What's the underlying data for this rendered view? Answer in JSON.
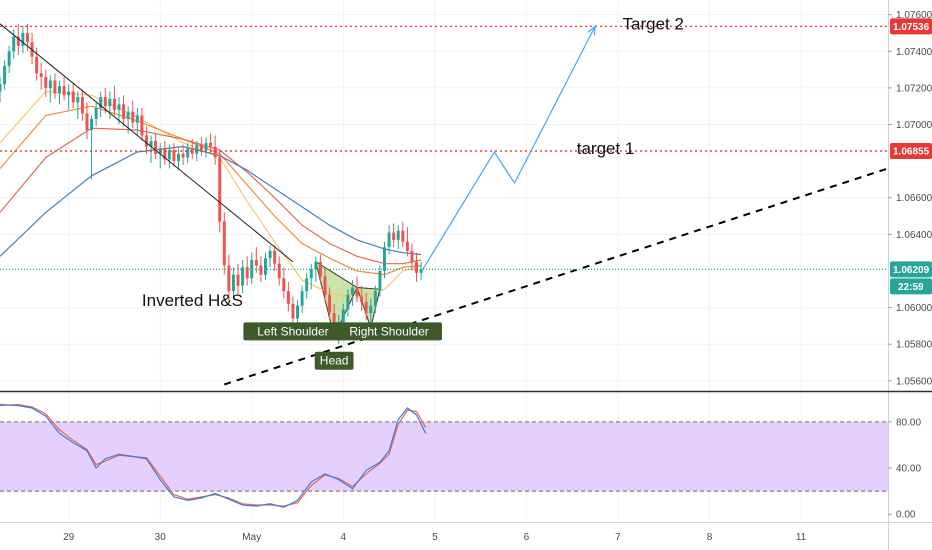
{
  "chart_data": {
    "type": "candlestick",
    "price_axis": {
      "ticks": [
        "1.07600",
        "1.07400",
        "1.07200",
        "1.07000",
        "1.06600",
        "1.06400",
        "1.06000",
        "1.05800",
        "1.05600"
      ],
      "tick_values": [
        1.076,
        1.074,
        1.072,
        1.07,
        1.066,
        1.064,
        1.06,
        1.058,
        1.056
      ],
      "range": [
        1.0555,
        1.0768
      ]
    },
    "time_axis": {
      "labels": [
        "29",
        "30",
        "May",
        "4",
        "5",
        "6",
        "7",
        "8",
        "11"
      ],
      "label_times": [
        0.75,
        1.75,
        2.75,
        3.75,
        4.75,
        5.75,
        6.75,
        7.75,
        8.75
      ],
      "range": [
        0.0,
        9.7
      ]
    },
    "levels": [
      {
        "name": "target-2-level",
        "value": 1.07536,
        "label": "1.07536",
        "color": "#e53935"
      },
      {
        "name": "target-1-level",
        "value": 1.06855,
        "label": "1.06855",
        "color": "#e53935"
      },
      {
        "name": "current-price",
        "value": 1.06209,
        "label": "1.06209",
        "color": "#26a69a"
      }
    ],
    "countdown": "22:59",
    "candles": [
      [
        0.0,
        1.0718,
        1.0726,
        1.0712,
        1.0722
      ],
      [
        0.05,
        1.0722,
        1.0735,
        1.0719,
        1.0732
      ],
      [
        0.1,
        1.0732,
        1.0743,
        1.0728,
        1.074
      ],
      [
        0.15,
        1.074,
        1.0752,
        1.0736,
        1.0748
      ],
      [
        0.2,
        1.0748,
        1.0755,
        1.0738,
        1.0743
      ],
      [
        0.25,
        1.0743,
        1.0754,
        1.0739,
        1.075
      ],
      [
        0.3,
        1.075,
        1.0755,
        1.074,
        1.0745
      ],
      [
        0.35,
        1.0745,
        1.075,
        1.0733,
        1.0737
      ],
      [
        0.4,
        1.0737,
        1.0742,
        1.0724,
        1.0728
      ],
      [
        0.45,
        1.0728,
        1.0734,
        1.0719,
        1.0726
      ],
      [
        0.5,
        1.0726,
        1.073,
        1.0715,
        1.072
      ],
      [
        0.55,
        1.072,
        1.0727,
        1.0712,
        1.0724
      ],
      [
        0.6,
        1.0724,
        1.0728,
        1.0714,
        1.0717
      ],
      [
        0.65,
        1.0717,
        1.0724,
        1.0711,
        1.0721
      ],
      [
        0.7,
        1.0721,
        1.0726,
        1.0713,
        1.0716
      ],
      [
        0.75,
        1.0716,
        1.0722,
        1.0708,
        1.0718
      ],
      [
        0.8,
        1.0718,
        1.0723,
        1.0709,
        1.0712
      ],
      [
        0.85,
        1.0712,
        1.0718,
        1.0703,
        1.0715
      ],
      [
        0.9,
        1.0715,
        1.0719,
        1.0702,
        1.0706
      ],
      [
        0.95,
        1.0706,
        1.0712,
        1.0692,
        1.0697
      ],
      [
        1.0,
        1.0697,
        1.0705,
        1.067,
        1.0703
      ],
      [
        1.05,
        1.0703,
        1.0712,
        1.0699,
        1.0709
      ],
      [
        1.1,
        1.0709,
        1.0718,
        1.0704,
        1.0715
      ],
      [
        1.15,
        1.0715,
        1.072,
        1.0706,
        1.071
      ],
      [
        1.2,
        1.071,
        1.0718,
        1.0703,
        1.0714
      ],
      [
        1.25,
        1.0714,
        1.0721,
        1.0705,
        1.0708
      ],
      [
        1.3,
        1.0708,
        1.0715,
        1.07,
        1.0711
      ],
      [
        1.35,
        1.0711,
        1.0716,
        1.0699,
        1.0703
      ],
      [
        1.4,
        1.0703,
        1.071,
        1.0695,
        1.0707
      ],
      [
        1.45,
        1.0707,
        1.0713,
        1.0698,
        1.0701
      ],
      [
        1.5,
        1.0701,
        1.0709,
        1.0694,
        1.0705
      ],
      [
        1.55,
        1.0705,
        1.0709,
        1.0691,
        1.0694
      ],
      [
        1.6,
        1.0694,
        1.0699,
        1.0684,
        1.0688
      ],
      [
        1.65,
        1.0688,
        1.0694,
        1.0679,
        1.0691
      ],
      [
        1.7,
        1.0691,
        1.0695,
        1.0681,
        1.0684
      ],
      [
        1.75,
        1.0684,
        1.069,
        1.0676,
        1.0687
      ],
      [
        1.8,
        1.0687,
        1.0691,
        1.0678,
        1.0681
      ],
      [
        1.85,
        1.0681,
        1.0689,
        1.0676,
        1.0686
      ],
      [
        1.9,
        1.0686,
        1.069,
        1.0677,
        1.068
      ],
      [
        1.95,
        1.068,
        1.0687,
        1.0675,
        1.0684
      ],
      [
        2.0,
        1.0684,
        1.0689,
        1.0678,
        1.0682
      ],
      [
        2.05,
        1.0682,
        1.069,
        1.0679,
        1.0687
      ],
      [
        2.1,
        1.0687,
        1.0692,
        1.0681,
        1.0684
      ],
      [
        2.15,
        1.0684,
        1.0691,
        1.068,
        1.0689
      ],
      [
        2.2,
        1.0689,
        1.0693,
        1.0683,
        1.0686
      ],
      [
        2.25,
        1.0686,
        1.0693,
        1.0682,
        1.069
      ],
      [
        2.3,
        1.069,
        1.0695,
        1.0684,
        1.0688
      ],
      [
        2.35,
        1.0688,
        1.0694,
        1.0678,
        1.0682
      ],
      [
        2.4,
        1.0682,
        1.0686,
        1.0641,
        1.0647
      ],
      [
        2.45,
        1.0647,
        1.0652,
        1.0618,
        1.0623
      ],
      [
        2.5,
        1.0623,
        1.0629,
        1.0603,
        1.0609
      ],
      [
        2.55,
        1.0609,
        1.0622,
        1.0605,
        1.0618
      ],
      [
        2.6,
        1.0618,
        1.0624,
        1.0607,
        1.0612
      ],
      [
        2.65,
        1.0612,
        1.0626,
        1.0608,
        1.0622
      ],
      [
        2.7,
        1.0622,
        1.0628,
        1.0612,
        1.0616
      ],
      [
        2.75,
        1.0616,
        1.063,
        1.0613,
        1.0626
      ],
      [
        2.8,
        1.0626,
        1.0633,
        1.0619,
        1.0623
      ],
      [
        2.85,
        1.0623,
        1.0628,
        1.0614,
        1.0618
      ],
      [
        2.9,
        1.0618,
        1.063,
        1.0615,
        1.0627
      ],
      [
        2.95,
        1.0627,
        1.0634,
        1.0622,
        1.0631
      ],
      [
        3.0,
        1.0631,
        1.0634,
        1.062,
        1.0624
      ],
      [
        3.05,
        1.0624,
        1.0628,
        1.0612,
        1.0616
      ],
      [
        3.1,
        1.0616,
        1.0622,
        1.0605,
        1.0609
      ],
      [
        3.15,
        1.0609,
        1.0614,
        1.0598,
        1.0602
      ],
      [
        3.2,
        1.0602,
        1.0606,
        1.059,
        1.0594
      ],
      [
        3.25,
        1.0594,
        1.0604,
        1.0589,
        1.0601
      ],
      [
        3.3,
        1.0601,
        1.0612,
        1.0597,
        1.0609
      ],
      [
        3.35,
        1.0609,
        1.0619,
        1.0605,
        1.0616
      ],
      [
        3.4,
        1.0616,
        1.0624,
        1.061,
        1.0621
      ],
      [
        3.45,
        1.0621,
        1.0628,
        1.0614,
        1.0625
      ],
      [
        3.5,
        1.0625,
        1.0629,
        1.0613,
        1.0617
      ],
      [
        3.55,
        1.0617,
        1.0621,
        1.0603,
        1.0607
      ],
      [
        3.6,
        1.0607,
        1.0611,
        1.0593,
        1.0597
      ],
      [
        3.65,
        1.0597,
        1.0602,
        1.0584,
        1.0588
      ],
      [
        3.7,
        1.0588,
        1.0596,
        1.058,
        1.0592
      ],
      [
        3.75,
        1.0592,
        1.0602,
        1.0588,
        1.0599
      ],
      [
        3.8,
        1.0599,
        1.061,
        1.0595,
        1.0607
      ],
      [
        3.85,
        1.0607,
        1.0615,
        1.0601,
        1.0611
      ],
      [
        3.9,
        1.0611,
        1.0617,
        1.0603,
        1.0606
      ],
      [
        3.95,
        1.0606,
        1.0612,
        1.0598,
        1.0603
      ],
      [
        4.0,
        1.0603,
        1.0608,
        1.0593,
        1.0597
      ],
      [
        4.05,
        1.0597,
        1.0605,
        1.0589,
        1.0601
      ],
      [
        4.1,
        1.0601,
        1.0612,
        1.0597,
        1.0609
      ],
      [
        4.15,
        1.0609,
        1.0623,
        1.0606,
        1.062
      ],
      [
        4.2,
        1.062,
        1.0636,
        1.0616,
        1.0633
      ],
      [
        4.25,
        1.0633,
        1.0645,
        1.0629,
        1.0641
      ],
      [
        4.3,
        1.0641,
        1.0646,
        1.0633,
        1.0637
      ],
      [
        4.35,
        1.0637,
        1.0645,
        1.0632,
        1.0642
      ],
      [
        4.4,
        1.0642,
        1.0647,
        1.0633,
        1.0636
      ],
      [
        4.45,
        1.0636,
        1.0644,
        1.0628,
        1.0631
      ],
      [
        4.5,
        1.0631,
        1.0635,
        1.062,
        1.0625
      ],
      [
        4.55,
        1.0625,
        1.063,
        1.0614,
        1.0619
      ],
      [
        4.6,
        1.0619,
        1.0625,
        1.0615,
        1.0621
      ]
    ],
    "moving_averages": [
      {
        "name": "ma-yellow",
        "color": "#f7c873",
        "points": [
          [
            0.0,
            1.069
          ],
          [
            0.5,
            1.0718
          ],
          [
            1.0,
            1.0716
          ],
          [
            1.5,
            1.0704
          ],
          [
            2.0,
            1.069
          ],
          [
            2.4,
            1.0682
          ],
          [
            2.7,
            1.0658
          ],
          [
            3.0,
            1.0636
          ],
          [
            3.3,
            1.0615
          ],
          [
            3.6,
            1.0608
          ],
          [
            3.9,
            1.0605
          ],
          [
            4.2,
            1.061
          ],
          [
            4.4,
            1.062
          ],
          [
            4.6,
            1.0623
          ]
        ]
      },
      {
        "name": "ma-orange",
        "color": "#ef8e3b",
        "points": [
          [
            0.0,
            1.0676
          ],
          [
            0.5,
            1.0705
          ],
          [
            1.0,
            1.071
          ],
          [
            1.5,
            1.0702
          ],
          [
            2.0,
            1.0692
          ],
          [
            2.4,
            1.0684
          ],
          [
            2.7,
            1.0667
          ],
          [
            3.0,
            1.065
          ],
          [
            3.3,
            1.0635
          ],
          [
            3.6,
            1.0627
          ],
          [
            3.9,
            1.062
          ],
          [
            4.2,
            1.0618
          ],
          [
            4.4,
            1.0622
          ],
          [
            4.6,
            1.0623
          ]
        ]
      },
      {
        "name": "ma-red",
        "color": "#e26a55",
        "points": [
          [
            0.0,
            1.0652
          ],
          [
            0.5,
            1.0682
          ],
          [
            1.0,
            1.0698
          ],
          [
            1.5,
            1.0697
          ],
          [
            2.0,
            1.0692
          ],
          [
            2.4,
            1.0686
          ],
          [
            2.7,
            1.0674
          ],
          [
            3.0,
            1.066
          ],
          [
            3.3,
            1.0645
          ],
          [
            3.6,
            1.0635
          ],
          [
            3.9,
            1.0628
          ],
          [
            4.2,
            1.0624
          ],
          [
            4.4,
            1.0624
          ],
          [
            4.6,
            1.0626
          ]
        ]
      },
      {
        "name": "ma-blue",
        "color": "#4a7fb5",
        "points": [
          [
            0.0,
            1.0628
          ],
          [
            0.5,
            1.0652
          ],
          [
            1.0,
            1.0672
          ],
          [
            1.5,
            1.0685
          ],
          [
            2.0,
            1.0688
          ],
          [
            2.4,
            1.0683
          ],
          [
            2.7,
            1.0675
          ],
          [
            3.0,
            1.0665
          ],
          [
            3.3,
            1.0655
          ],
          [
            3.6,
            1.0645
          ],
          [
            3.9,
            1.0637
          ],
          [
            4.2,
            1.0632
          ],
          [
            4.4,
            1.063
          ],
          [
            4.6,
            1.0629
          ]
        ]
      }
    ],
    "downtrend_line": [
      [
        0.0,
        1.0755
      ],
      [
        3.2,
        1.0625
      ]
    ],
    "support_line": [
      [
        2.45,
        1.0558
      ],
      [
        9.7,
        1.0676
      ]
    ],
    "projection_arrow": [
      [
        4.62,
        1.0621
      ],
      [
        5.4,
        1.0685
      ],
      [
        5.62,
        1.0668
      ],
      [
        6.5,
        1.07536
      ]
    ],
    "pattern": {
      "label": "Inverted H&S",
      "badges": [
        {
          "name": "left-shoulder-badge",
          "label": "Left Shoulder",
          "t": 3.2,
          "p": 1.0587
        },
        {
          "name": "head-badge",
          "label": "Head",
          "t": 3.65,
          "p": 1.0571
        },
        {
          "name": "right-shoulder-badge",
          "label": "Right Shoulder",
          "t": 4.25,
          "p": 1.0587
        }
      ],
      "triangles": [
        [
          [
            3.45,
            1.0625
          ],
          [
            3.65,
            1.0584
          ],
          [
            3.9,
            1.0611
          ]
        ],
        [
          [
            3.9,
            1.0611
          ],
          [
            4.05,
            1.0589
          ],
          [
            4.15,
            1.061
          ]
        ]
      ]
    },
    "annotations": [
      {
        "name": "target-2-label",
        "text": "Target 2",
        "t": 6.8,
        "p": 1.0752
      },
      {
        "name": "target-1-label",
        "text": "target 1",
        "t": 6.3,
        "p": 1.0684
      },
      {
        "name": "pattern-label",
        "text": "Inverted H&S",
        "t": 1.55,
        "p": 1.0601
      }
    ],
    "oscillator": {
      "ticks": [
        "80.00",
        "40.00",
        "0.00"
      ],
      "tick_values": [
        80,
        40,
        0
      ],
      "range": [
        -5,
        105
      ],
      "band": [
        20,
        80
      ],
      "k_color": "#2f80ed",
      "d_color": "#f2663c",
      "k": [
        [
          0.0,
          95
        ],
        [
          0.2,
          94
        ],
        [
          0.35,
          92
        ],
        [
          0.5,
          85
        ],
        [
          0.65,
          70
        ],
        [
          0.8,
          62
        ],
        [
          0.95,
          55
        ],
        [
          1.05,
          40
        ],
        [
          1.15,
          48
        ],
        [
          1.3,
          52
        ],
        [
          1.45,
          50
        ],
        [
          1.6,
          48
        ],
        [
          1.75,
          30
        ],
        [
          1.9,
          15
        ],
        [
          2.05,
          12
        ],
        [
          2.2,
          14
        ],
        [
          2.35,
          18
        ],
        [
          2.5,
          13
        ],
        [
          2.65,
          8
        ],
        [
          2.8,
          7
        ],
        [
          2.95,
          9
        ],
        [
          3.1,
          6
        ],
        [
          3.25,
          12
        ],
        [
          3.4,
          28
        ],
        [
          3.55,
          35
        ],
        [
          3.7,
          30
        ],
        [
          3.85,
          22
        ],
        [
          4.0,
          38
        ],
        [
          4.15,
          45
        ],
        [
          4.25,
          55
        ],
        [
          4.35,
          82
        ],
        [
          4.45,
          92
        ],
        [
          4.55,
          86
        ],
        [
          4.65,
          70
        ]
      ],
      "d": [
        [
          0.0,
          94
        ],
        [
          0.2,
          95
        ],
        [
          0.35,
          93
        ],
        [
          0.5,
          87
        ],
        [
          0.65,
          73
        ],
        [
          0.8,
          64
        ],
        [
          0.95,
          56
        ],
        [
          1.05,
          43
        ],
        [
          1.15,
          46
        ],
        [
          1.3,
          51
        ],
        [
          1.45,
          50
        ],
        [
          1.6,
          49
        ],
        [
          1.75,
          33
        ],
        [
          1.9,
          17
        ],
        [
          2.05,
          13
        ],
        [
          2.2,
          15
        ],
        [
          2.35,
          17
        ],
        [
          2.5,
          14
        ],
        [
          2.65,
          9
        ],
        [
          2.8,
          8
        ],
        [
          2.95,
          8
        ],
        [
          3.1,
          7
        ],
        [
          3.25,
          10
        ],
        [
          3.4,
          25
        ],
        [
          3.55,
          34
        ],
        [
          3.7,
          31
        ],
        [
          3.85,
          24
        ],
        [
          4.0,
          35
        ],
        [
          4.15,
          44
        ],
        [
          4.25,
          52
        ],
        [
          4.35,
          78
        ],
        [
          4.45,
          90
        ],
        [
          4.55,
          89
        ],
        [
          4.65,
          75
        ]
      ]
    }
  }
}
